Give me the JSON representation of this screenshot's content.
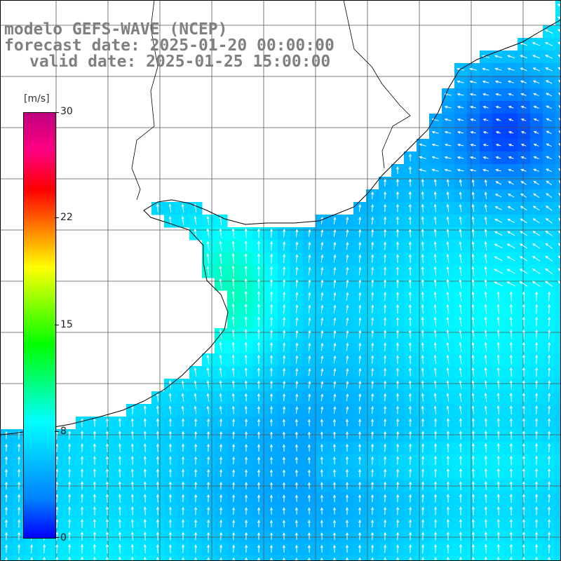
{
  "title": {
    "model": "modelo GEFS-WAVE (NCEP)",
    "forecast": "forecast date: 2025-01-20 00:00:00",
    "valid": "valid date: 2025-01-25 15:00:00"
  },
  "colorbar": {
    "unit": "[m/s]",
    "min": 0,
    "max": 30,
    "ticks": [
      "30",
      "22",
      "15",
      "8",
      "0"
    ],
    "tick_values": [
      30,
      22,
      15,
      8,
      0
    ],
    "colors": [
      "#0000ff",
      "#0080ff",
      "#00c0ff",
      "#00ffff",
      "#00ff80",
      "#00ff00",
      "#80ff00",
      "#ffff00",
      "#ff8000",
      "#ff0000",
      "#ff0080",
      "#c00080"
    ]
  },
  "map": {
    "variable": "wind speed",
    "land_color": "#ffffff",
    "grid": true,
    "arrow_color": "#ffffff"
  }
}
